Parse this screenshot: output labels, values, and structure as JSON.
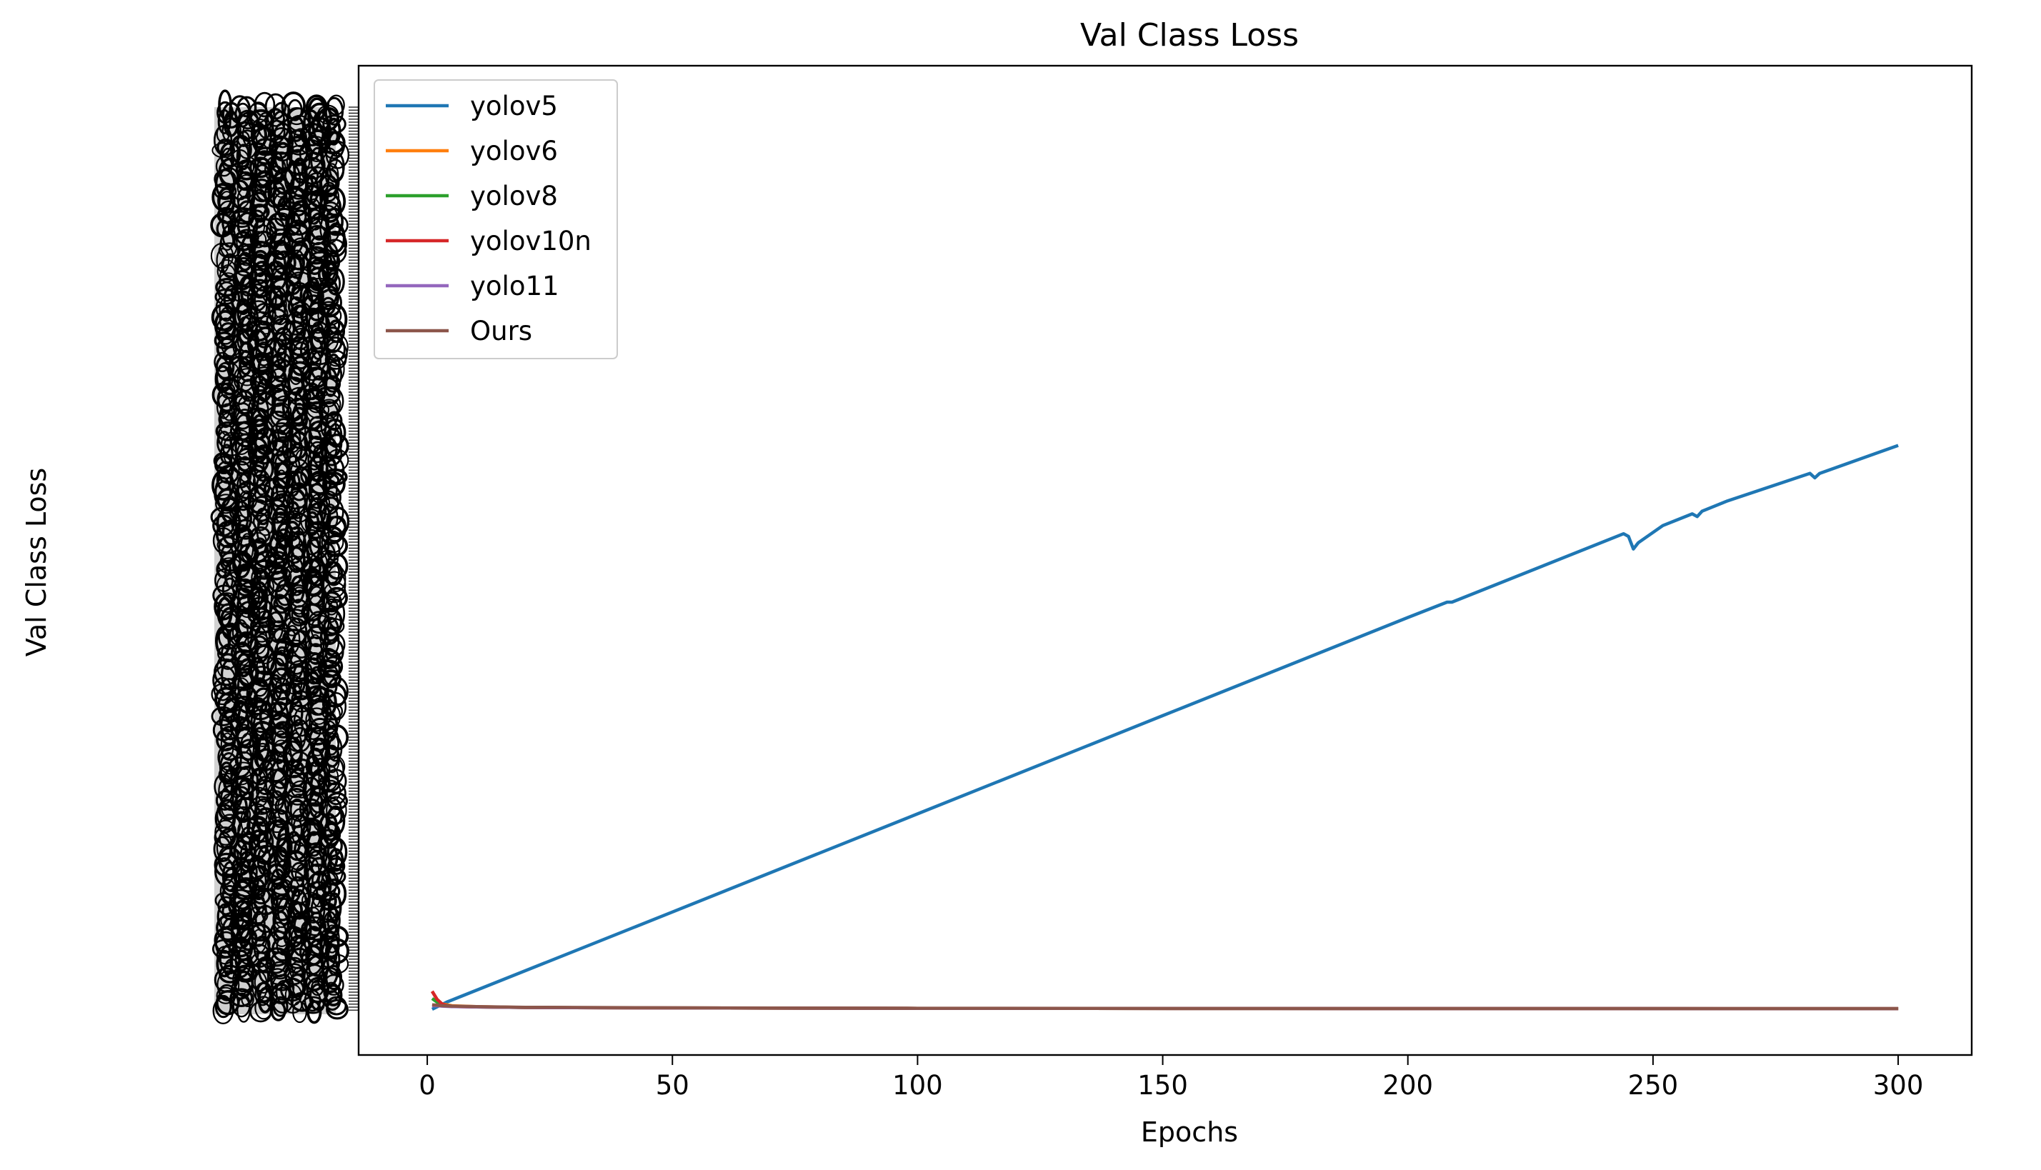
{
  "chart_data": {
    "type": "line",
    "title": "Val Class Loss",
    "xlabel": "Epochs",
    "ylabel": "Val Class Loss",
    "xlim": [
      -14,
      315
    ],
    "ylim": [
      0,
      1
    ],
    "x_ticks": [
      0,
      50,
      100,
      150,
      200,
      250,
      300
    ],
    "y_ticks_note": "Y tick labels overlap into an unreadable black column on the original plot",
    "grid": false,
    "legend_position": "top-left",
    "series": [
      {
        "name": "yolov5",
        "color": "#1f77b4",
        "x": [
          1,
          4,
          50,
          100,
          150,
          200,
          208,
          209,
          244,
          245,
          246,
          247,
          252,
          258,
          259,
          260,
          265,
          282,
          283,
          284,
          300
        ],
        "y": [
          0.0,
          0.008,
          0.108,
          0.217,
          0.326,
          0.435,
          0.452,
          0.452,
          0.528,
          0.525,
          0.511,
          0.518,
          0.537,
          0.55,
          0.547,
          0.553,
          0.564,
          0.595,
          0.59,
          0.595,
          0.626
        ]
      },
      {
        "name": "yolov6",
        "color": "#ff7f0e",
        "x": [
          1,
          2,
          3,
          5,
          10,
          20,
          50,
          100,
          200,
          300
        ],
        "y": [
          0.02,
          0.011,
          0.006,
          0.004,
          0.003,
          0.002,
          0.0015,
          0.001,
          0.0008,
          0.0007
        ]
      },
      {
        "name": "yolov8",
        "color": "#2ca02c",
        "x": [
          1,
          2,
          3,
          5,
          10,
          20,
          50,
          100,
          200,
          300
        ],
        "y": [
          0.012,
          0.008,
          0.005,
          0.0035,
          0.0025,
          0.002,
          0.0015,
          0.001,
          0.0008,
          0.0007
        ]
      },
      {
        "name": "yolov10n",
        "color": "#d62728",
        "x": [
          1,
          2,
          3,
          4,
          6,
          10,
          20,
          50,
          100,
          200,
          300
        ],
        "y": [
          0.02,
          0.011,
          0.006,
          0.004,
          0.003,
          0.0025,
          0.002,
          0.0015,
          0.001,
          0.0008,
          0.0007
        ]
      },
      {
        "name": "yolo11",
        "color": "#9467bd",
        "x": [
          1,
          2,
          3,
          5,
          10,
          20,
          50,
          100,
          200,
          300
        ],
        "y": [
          0.004,
          0.004,
          0.0035,
          0.003,
          0.0025,
          0.002,
          0.0015,
          0.001,
          0.0008,
          0.0007
        ]
      },
      {
        "name": "Ours",
        "color": "#8c564b",
        "x": [
          1,
          2,
          3,
          5,
          10,
          20,
          50,
          100,
          200,
          300
        ],
        "y": [
          0.005,
          0.0045,
          0.004,
          0.0035,
          0.003,
          0.0022,
          0.0016,
          0.0011,
          0.0008,
          0.0007
        ]
      }
    ]
  }
}
